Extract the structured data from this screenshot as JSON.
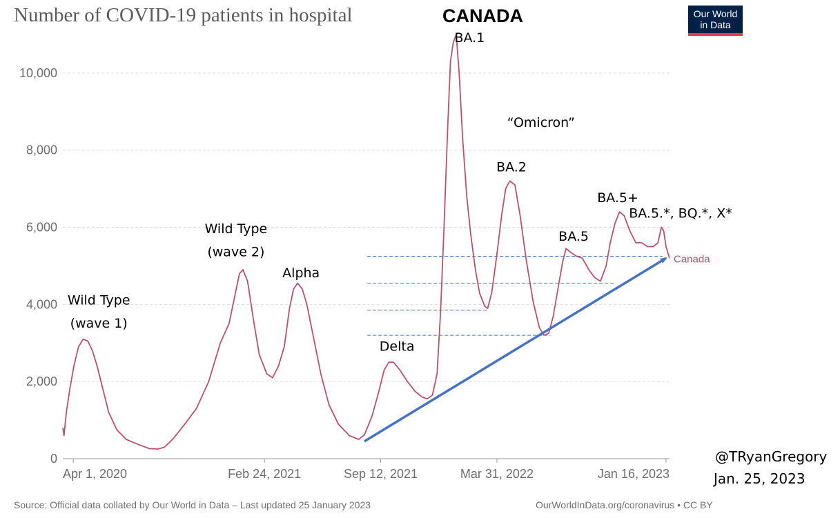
{
  "header": {
    "title": "Number of COVID-19 patients in hospital",
    "country": "CANADA",
    "logo_line1": "Our World",
    "logo_line2": "in Data"
  },
  "footer": {
    "source": "Source: Official data collated by Our World in Data – Last updated 25 January 2023",
    "url": "OurWorldInData.org/coronavirus • CC BY"
  },
  "credit": {
    "handle": "@TRyanGregory",
    "date": "Jan. 25, 2023"
  },
  "colors": {
    "series": "#c0506a",
    "trend": "#4472c4",
    "grid": "#dddddd",
    "axis_text": "#6e6e6e"
  },
  "chart_data": {
    "type": "line",
    "title": "Number of COVID-19 patients in hospital",
    "xlabel": "",
    "ylabel": "",
    "ylim": [
      0,
      11000
    ],
    "xlim": [
      "2020-03-14",
      "2023-01-22"
    ],
    "y_ticks": [
      "0",
      "2,000",
      "4,000",
      "6,000",
      "8,000",
      "10,000"
    ],
    "y_tick_values": [
      0,
      2000,
      4000,
      6000,
      8000,
      10000
    ],
    "x_ticks": [
      "Apr 1, 2020",
      "Feb 24, 2021",
      "Sep 12, 2021",
      "Mar 31, 2022",
      "Jan 16, 2023"
    ],
    "x_tick_dates": [
      "2020-04-01",
      "2021-02-24",
      "2021-09-12",
      "2022-03-31",
      "2023-01-16"
    ],
    "series": [
      {
        "name": "Canada",
        "points": [
          [
            "2020-03-14",
            800
          ],
          [
            "2020-03-16",
            600
          ],
          [
            "2020-03-20",
            1200
          ],
          [
            "2020-03-26",
            1800
          ],
          [
            "2020-04-02",
            2400
          ],
          [
            "2020-04-10",
            2900
          ],
          [
            "2020-04-18",
            3100
          ],
          [
            "2020-04-26",
            3050
          ],
          [
            "2020-05-04",
            2800
          ],
          [
            "2020-05-12",
            2400
          ],
          [
            "2020-05-22",
            1800
          ],
          [
            "2020-06-01",
            1200
          ],
          [
            "2020-06-15",
            750
          ],
          [
            "2020-07-01",
            500
          ],
          [
            "2020-07-20",
            380
          ],
          [
            "2020-08-10",
            260
          ],
          [
            "2020-08-25",
            250
          ],
          [
            "2020-09-05",
            300
          ],
          [
            "2020-09-20",
            520
          ],
          [
            "2020-10-10",
            900
          ],
          [
            "2020-10-30",
            1300
          ],
          [
            "2020-11-20",
            2000
          ],
          [
            "2020-12-10",
            3000
          ],
          [
            "2020-12-25",
            3500
          ],
          [
            "2021-01-05",
            4300
          ],
          [
            "2021-01-12",
            4800
          ],
          [
            "2021-01-18",
            4900
          ],
          [
            "2021-01-26",
            4600
          ],
          [
            "2021-02-05",
            3600
          ],
          [
            "2021-02-15",
            2700
          ],
          [
            "2021-02-28",
            2200
          ],
          [
            "2021-03-10",
            2100
          ],
          [
            "2021-03-20",
            2400
          ],
          [
            "2021-03-30",
            2900
          ],
          [
            "2021-04-08",
            3900
          ],
          [
            "2021-04-15",
            4400
          ],
          [
            "2021-04-22",
            4550
          ],
          [
            "2021-04-30",
            4400
          ],
          [
            "2021-05-08",
            4000
          ],
          [
            "2021-05-20",
            3100
          ],
          [
            "2021-06-01",
            2200
          ],
          [
            "2021-06-15",
            1400
          ],
          [
            "2021-07-01",
            900
          ],
          [
            "2021-07-20",
            600
          ],
          [
            "2021-08-05",
            500
          ],
          [
            "2021-08-15",
            620
          ],
          [
            "2021-08-28",
            1100
          ],
          [
            "2021-09-08",
            1700
          ],
          [
            "2021-09-18",
            2300
          ],
          [
            "2021-09-26",
            2500
          ],
          [
            "2021-10-04",
            2500
          ],
          [
            "2021-10-15",
            2300
          ],
          [
            "2021-10-28",
            2000
          ],
          [
            "2021-11-10",
            1750
          ],
          [
            "2021-11-22",
            1600
          ],
          [
            "2021-12-01",
            1550
          ],
          [
            "2021-12-10",
            1650
          ],
          [
            "2021-12-18",
            2200
          ],
          [
            "2021-12-24",
            3800
          ],
          [
            "2021-12-30",
            6000
          ],
          [
            "2022-01-05",
            8500
          ],
          [
            "2022-01-10",
            10300
          ],
          [
            "2022-01-15",
            10800
          ],
          [
            "2022-01-20",
            11000
          ],
          [
            "2022-01-25",
            10000
          ],
          [
            "2022-01-31",
            8300
          ],
          [
            "2022-02-07",
            6800
          ],
          [
            "2022-02-14",
            5800
          ],
          [
            "2022-02-22",
            4900
          ],
          [
            "2022-03-01",
            4300
          ],
          [
            "2022-03-10",
            3950
          ],
          [
            "2022-03-15",
            3900
          ],
          [
            "2022-03-22",
            4300
          ],
          [
            "2022-03-31",
            5300
          ],
          [
            "2022-04-08",
            6300
          ],
          [
            "2022-04-15",
            7000
          ],
          [
            "2022-04-22",
            7200
          ],
          [
            "2022-05-01",
            7100
          ],
          [
            "2022-05-10",
            6300
          ],
          [
            "2022-05-20",
            5200
          ],
          [
            "2022-06-01",
            4100
          ],
          [
            "2022-06-12",
            3400
          ],
          [
            "2022-06-20",
            3200
          ],
          [
            "2022-06-28",
            3250
          ],
          [
            "2022-07-06",
            3700
          ],
          [
            "2022-07-14",
            4400
          ],
          [
            "2022-07-22",
            5100
          ],
          [
            "2022-07-28",
            5450
          ],
          [
            "2022-08-05",
            5350
          ],
          [
            "2022-08-15",
            5250
          ],
          [
            "2022-08-25",
            5200
          ],
          [
            "2022-09-05",
            4900
          ],
          [
            "2022-09-15",
            4700
          ],
          [
            "2022-09-25",
            4600
          ],
          [
            "2022-10-05",
            5000
          ],
          [
            "2022-10-12",
            5600
          ],
          [
            "2022-10-20",
            6100
          ],
          [
            "2022-10-28",
            6400
          ],
          [
            "2022-11-05",
            6300
          ],
          [
            "2022-11-15",
            5900
          ],
          [
            "2022-11-25",
            5600
          ],
          [
            "2022-12-05",
            5600
          ],
          [
            "2022-12-15",
            5500
          ],
          [
            "2022-12-25",
            5500
          ],
          [
            "2023-01-02",
            5600
          ],
          [
            "2023-01-08",
            6000
          ],
          [
            "2023-01-12",
            5900
          ],
          [
            "2023-01-16",
            5500
          ],
          [
            "2023-01-22",
            5200
          ]
        ]
      }
    ],
    "series_label": "Canada",
    "annotations": [
      {
        "text": "Wild Type",
        "date": "2020-05-15",
        "value": 4000
      },
      {
        "text": "(wave 1)",
        "date": "2020-05-15",
        "value": 3400
      },
      {
        "text": "Wild Type",
        "date": "2021-01-06",
        "value": 5850
      },
      {
        "text": "(wave 2)",
        "date": "2021-01-06",
        "value": 5250
      },
      {
        "text": "Alpha",
        "date": "2021-04-28",
        "value": 4700
      },
      {
        "text": "Delta",
        "date": "2021-10-10",
        "value": 2800
      },
      {
        "text": "BA.1",
        "date": "2022-02-12",
        "value": 10800
      },
      {
        "text": "“Omicron”",
        "date": "2022-06-15",
        "value": 8600
      },
      {
        "text": "BA.2",
        "date": "2022-04-25",
        "value": 7450
      },
      {
        "text": "BA.5",
        "date": "2022-08-10",
        "value": 5650
      },
      {
        "text": "BA.5+",
        "date": "2022-10-25",
        "value": 6650
      },
      {
        "text": "BA.5.*, BQ.*, X*",
        "date": "2023-02-10",
        "value": 6250
      }
    ],
    "trend_arrow": {
      "from": [
        "2021-08-15",
        450
      ],
      "to": [
        "2023-01-16",
        5200
      ]
    },
    "reference_lines": [
      {
        "value": 5250,
        "from": "2021-08-20",
        "to": "2023-01-10"
      },
      {
        "value": 4550,
        "from": "2021-08-20",
        "to": "2022-10-20"
      },
      {
        "value": 3850,
        "from": "2021-08-20",
        "to": "2022-03-15"
      },
      {
        "value": 3200,
        "from": "2021-08-20",
        "to": "2022-07-01"
      }
    ]
  }
}
